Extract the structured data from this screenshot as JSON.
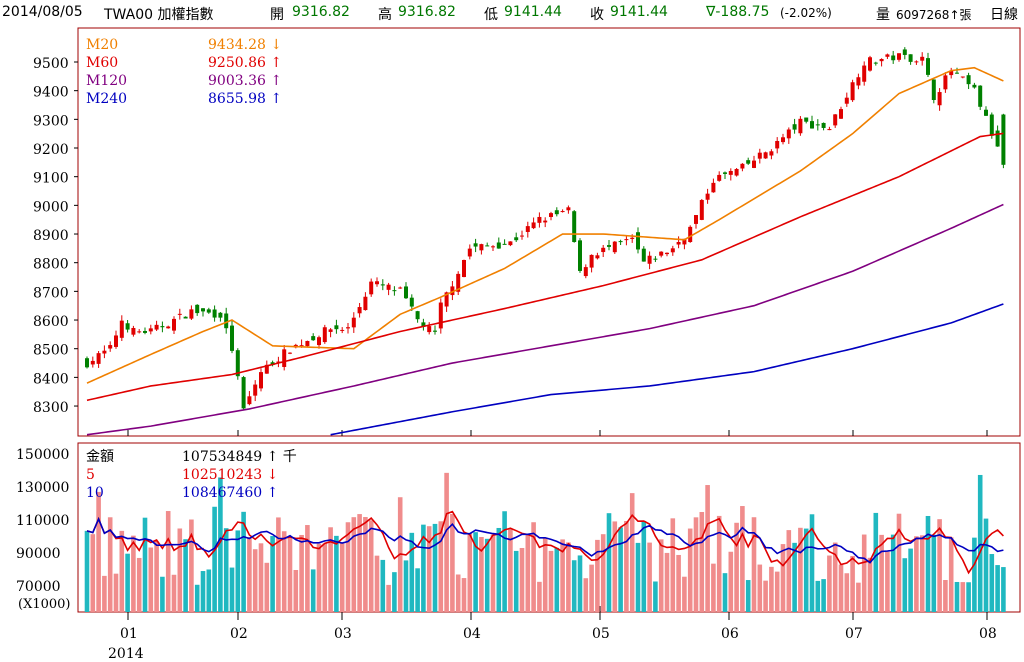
{
  "header": {
    "date": "2014/08/05",
    "symbol": "TWA00 加權指數",
    "open_label": "開",
    "open": "9316.82",
    "high_label": "高",
    "high": "9316.82",
    "low_label": "低",
    "low": "9141.44",
    "close_label": "收",
    "close": "9141.44",
    "change": "∇-188.75",
    "change_pct": "(-2.02%)",
    "volume_label": "量",
    "volume": "6097268↑張",
    "period": "日線"
  },
  "price_legend": [
    {
      "name": "M20",
      "value": "9434.28 ↓",
      "color": "#f08000"
    },
    {
      "name": "M60",
      "value": "9250.86 ↑",
      "color": "#e00000"
    },
    {
      "name": "M120",
      "value": "9003.36 ↑",
      "color": "#800080"
    },
    {
      "name": "M240",
      "value": "8655.98 ↑",
      "color": "#0000c0"
    }
  ],
  "volume_legend": [
    {
      "name": "金額",
      "value": "107534849 ↑ 千",
      "color": "#000"
    },
    {
      "name": "5",
      "value": "102510243 ↓",
      "color": "#e00000"
    },
    {
      "name": "10",
      "value": "108467460 ↑",
      "color": "#0000c0"
    }
  ],
  "chart_data": [
    {
      "type": "candlestick",
      "title": "TWA00 加權指數 日線",
      "ylim": [
        8200,
        9600
      ],
      "yticks": [
        8300,
        8400,
        8500,
        8600,
        8700,
        8800,
        8900,
        9000,
        9100,
        9200,
        9300,
        9400,
        9500
      ],
      "xticks": [
        "01",
        "02",
        "03",
        "04",
        "05",
        "06",
        "07",
        "08"
      ],
      "xsub": "2014",
      "close_path": [
        [
          0,
          8450
        ],
        [
          4,
          8500
        ],
        [
          6,
          8600
        ],
        [
          8,
          8560
        ],
        [
          11,
          8560
        ],
        [
          18,
          8630
        ],
        [
          23,
          8620
        ],
        [
          25,
          8500
        ],
        [
          27,
          8285
        ],
        [
          30,
          8420
        ],
        [
          35,
          8500
        ],
        [
          42,
          8570
        ],
        [
          45,
          8570
        ],
        [
          49,
          8730
        ],
        [
          54,
          8700
        ],
        [
          57,
          8600
        ],
        [
          60,
          8550
        ],
        [
          61,
          8650
        ],
        [
          66,
          8850
        ],
        [
          73,
          8870
        ],
        [
          78,
          8950
        ],
        [
          83,
          8980
        ],
        [
          85,
          8760
        ],
        [
          87,
          8830
        ],
        [
          94,
          8880
        ],
        [
          96,
          8800
        ],
        [
          101,
          8850
        ],
        [
          104,
          8920
        ],
        [
          108,
          9090
        ],
        [
          113,
          9130
        ],
        [
          118,
          9200
        ],
        [
          123,
          9290
        ],
        [
          128,
          9270
        ],
        [
          134,
          9500
        ],
        [
          140,
          9520
        ],
        [
          144,
          9510
        ],
        [
          146,
          9380
        ],
        [
          149,
          9470
        ],
        [
          153,
          9400
        ],
        [
          156,
          9250
        ],
        [
          158,
          9141
        ]
      ],
      "series": [
        {
          "name": "M20",
          "points": [
            [
              0,
              8380
            ],
            [
              11,
              8480
            ],
            [
              20,
              8560
            ],
            [
              25,
              8600
            ],
            [
              32,
              8510
            ],
            [
              46,
              8500
            ],
            [
              54,
              8620
            ],
            [
              61,
              8680
            ],
            [
              72,
              8780
            ],
            [
              82,
              8900
            ],
            [
              89,
              8900
            ],
            [
              103,
              8880
            ],
            [
              109,
              8950
            ],
            [
              123,
              9120
            ],
            [
              132,
              9250
            ],
            [
              140,
              9390
            ],
            [
              149,
              9470
            ],
            [
              153,
              9480
            ],
            [
              158,
              9434
            ]
          ]
        },
        {
          "name": "M60",
          "points": [
            [
              0,
              8320
            ],
            [
              11,
              8370
            ],
            [
              25,
              8410
            ],
            [
              37,
              8470
            ],
            [
              54,
              8560
            ],
            [
              72,
              8640
            ],
            [
              89,
              8720
            ],
            [
              106,
              8810
            ],
            [
              123,
              8960
            ],
            [
              140,
              9100
            ],
            [
              154,
              9240
            ],
            [
              158,
              9251
            ]
          ]
        },
        {
          "name": "M120",
          "points": [
            [
              0,
              8200
            ],
            [
              11,
              8230
            ],
            [
              28,
              8290
            ],
            [
              46,
              8370
            ],
            [
              63,
              8450
            ],
            [
              80,
              8510
            ],
            [
              97,
              8570
            ],
            [
              115,
              8650
            ],
            [
              132,
              8770
            ],
            [
              149,
              8920
            ],
            [
              158,
              9003
            ]
          ]
        },
        {
          "name": "M240",
          "points": [
            [
              42,
              8200
            ],
            [
              63,
              8280
            ],
            [
              80,
              8340
            ],
            [
              97,
              8370
            ],
            [
              115,
              8420
            ],
            [
              132,
              8500
            ],
            [
              149,
              8590
            ],
            [
              158,
              8656
            ]
          ]
        }
      ]
    },
    {
      "type": "bar",
      "title": "金額",
      "ylabel": "(X1000)",
      "ylim": [
        60000,
        155000
      ],
      "yticks": [
        70000,
        90000,
        110000,
        130000,
        150000
      ],
      "series": [
        "金額",
        "5",
        "10"
      ]
    }
  ]
}
